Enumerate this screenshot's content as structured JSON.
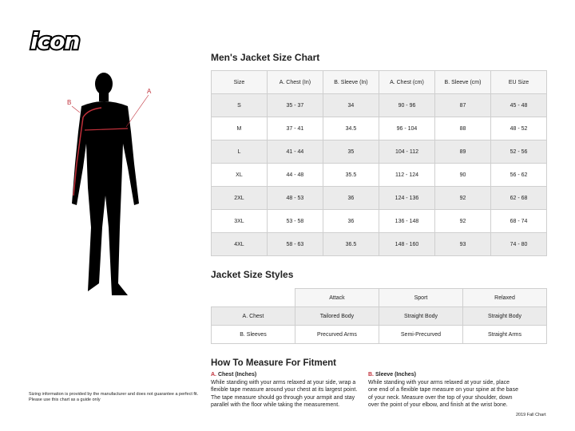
{
  "brand": {
    "logo_text": "icon"
  },
  "figure": {
    "label_a": "A",
    "label_b": "B"
  },
  "size_chart": {
    "title": "Men's Jacket Size Chart",
    "headers": [
      "Size",
      "A. Chest (In)",
      "B. Sleeve (In)",
      "A. Chest (cm)",
      "B. Sleeve (cm)",
      "EU Size"
    ],
    "rows": [
      [
        "S",
        "35 - 37",
        "34",
        "90 - 96",
        "87",
        "45 - 48"
      ],
      [
        "M",
        "37 - 41",
        "34.5",
        "96 - 104",
        "88",
        "48 - 52"
      ],
      [
        "L",
        "41 - 44",
        "35",
        "104 - 112",
        "89",
        "52 - 56"
      ],
      [
        "XL",
        "44 - 48",
        "35.5",
        "112 - 124",
        "90",
        "56 - 62"
      ],
      [
        "2XL",
        "48 - 53",
        "36",
        "124 - 136",
        "92",
        "62 - 68"
      ],
      [
        "3XL",
        "53 - 58",
        "36",
        "136 - 148",
        "92",
        "68 - 74"
      ],
      [
        "4XL",
        "58 - 63",
        "36.5",
        "148 - 160",
        "93",
        "74 - 80"
      ]
    ]
  },
  "styles": {
    "title": "Jacket Size Styles",
    "headers": [
      "",
      "Attack",
      "Sport",
      "Relaxed"
    ],
    "rows": [
      [
        "A. Chest",
        "Tailored Body",
        "Straight Body",
        "Straight Body"
      ],
      [
        "B. Sleeves",
        "Precurved Arms",
        "Semi-Precurved",
        "Straight Arms"
      ]
    ]
  },
  "measure": {
    "title": "How To Measure For Fitment",
    "chest": {
      "letter": "A.",
      "heading": "Chest (Inches)",
      "text": "While standing with your arms relaxed at your side, wrap a flexible tape measure around your chest at its largest point. The tape measure should go through your armpit and stay parallel with the floor while taking the measurement."
    },
    "sleeve": {
      "letter": "B.",
      "heading": "Sleeve (Inches)",
      "text": "While standing with your arms relaxed at your side, place one end of a flexible tape measure on your spine at the base of your neck. Measure over the top of your shoulder, down over the point of your elbow, and finish at the wrist bone."
    }
  },
  "disclaimer": {
    "line1": "Sizing information is provided by the manufacturer and does not guarantee a perfect fit.",
    "line2": "Please use this chart as a guide only"
  },
  "edition": "2019 Fall Chart",
  "colors": {
    "accent": "#c0303a",
    "header_bg": "#f6f6f6",
    "stripe_bg": "#ebebeb"
  }
}
